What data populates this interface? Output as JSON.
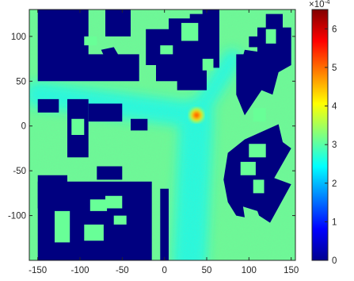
{
  "chart_data": {
    "type": "heatmap",
    "title": "",
    "xlabel": "",
    "ylabel": "",
    "x_range": [
      -160,
      155
    ],
    "y_range": [
      -150,
      130
    ],
    "x_ticks": [
      -150,
      -100,
      -50,
      0,
      50,
      100,
      150
    ],
    "y_ticks": [
      -100,
      -50,
      0,
      50,
      100
    ],
    "x_tick_labels": [
      "-150",
      "-100",
      "-50",
      "0",
      "50",
      "100",
      "150"
    ],
    "y_tick_labels": [
      "-100",
      "-50",
      "0",
      "50",
      "100"
    ],
    "colormap": "jet",
    "colorbar": {
      "range": [
        0,
        6.5
      ],
      "ticks": [
        0,
        1,
        2,
        3,
        4,
        5,
        6
      ],
      "tick_labels": [
        "0",
        "1",
        "2",
        "3",
        "4",
        "5",
        "6"
      ],
      "exponent_base": "×10",
      "exponent_power": "-4"
    },
    "background_level": 3.1,
    "corridor_level": 2.6,
    "source": {
      "x": 38,
      "y": 12,
      "peak": 5.2
    },
    "corridors": [
      {
        "from": [
          38,
          12
        ],
        "to": [
          -150,
          35
        ],
        "width": 30
      },
      {
        "from": [
          38,
          12
        ],
        "to": [
          30,
          -150
        ],
        "width": 40
      },
      {
        "from": [
          38,
          12
        ],
        "to": [
          80,
          75
        ],
        "width": 22
      }
    ],
    "obstacles": [
      [
        [
          -150,
          130
        ],
        [
          -150,
          50
        ],
        [
          -30,
          50
        ],
        [
          -30,
          80
        ],
        [
          -90,
          80
        ],
        [
          -90,
          130
        ]
      ],
      [
        [
          -70,
          130
        ],
        [
          -70,
          100
        ],
        [
          -40,
          100
        ],
        [
          -40,
          130
        ]
      ],
      [
        [
          -75,
          85
        ],
        [
          -70,
          75
        ],
        [
          -55,
          80
        ],
        [
          -60,
          88
        ]
      ],
      [
        [
          -22,
          108
        ],
        [
          -22,
          68
        ],
        [
          -10,
          68
        ],
        [
          -10,
          50
        ],
        [
          15,
          50
        ],
        [
          15,
          40
        ],
        [
          50,
          40
        ],
        [
          50,
          65
        ],
        [
          65,
          65
        ],
        [
          65,
          130
        ],
        [
          45,
          130
        ],
        [
          45,
          125
        ],
        [
          30,
          125
        ],
        [
          30,
          120
        ],
        [
          5,
          120
        ],
        [
          5,
          108
        ]
      ],
      [
        [
          90,
          68
        ],
        [
          110,
          72
        ],
        [
          115,
          65
        ],
        [
          118,
          82
        ],
        [
          95,
          85
        ]
      ],
      [
        [
          100,
          100
        ],
        [
          112,
          100
        ],
        [
          112,
          88
        ],
        [
          100,
          88
        ]
      ],
      [
        [
          95,
          12
        ],
        [
          115,
          40
        ],
        [
          128,
          35
        ],
        [
          135,
          60
        ],
        [
          150,
          68
        ],
        [
          150,
          110
        ],
        [
          140,
          110
        ],
        [
          140,
          125
        ],
        [
          120,
          125
        ],
        [
          120,
          110
        ],
        [
          110,
          110
        ],
        [
          110,
          80
        ],
        [
          85,
          80
        ],
        [
          85,
          35
        ]
      ],
      [
        [
          135,
          2
        ],
        [
          140,
          -18
        ],
        [
          150,
          -25
        ],
        [
          130,
          -58
        ],
        [
          150,
          -65
        ],
        [
          125,
          -108
        ],
        [
          112,
          -100
        ],
        [
          110,
          -95
        ],
        [
          93,
          -90
        ],
        [
          95,
          -102
        ],
        [
          85,
          -100
        ],
        [
          75,
          -85
        ],
        [
          70,
          -60
        ],
        [
          75,
          -30
        ],
        [
          95,
          -15
        ]
      ],
      [
        [
          -115,
          30
        ],
        [
          -115,
          -35
        ],
        [
          -90,
          -35
        ],
        [
          -90,
          30
        ]
      ],
      [
        [
          -150,
          30
        ],
        [
          -150,
          15
        ],
        [
          -125,
          15
        ],
        [
          -125,
          30
        ]
      ],
      [
        [
          -90,
          25
        ],
        [
          -50,
          25
        ],
        [
          -50,
          5
        ],
        [
          -90,
          5
        ]
      ],
      [
        [
          -40,
          8
        ],
        [
          -20,
          8
        ],
        [
          -20,
          -5
        ],
        [
          -40,
          -5
        ]
      ],
      [
        [
          -80,
          -45
        ],
        [
          -50,
          -45
        ],
        [
          -50,
          -60
        ],
        [
          -80,
          -60
        ]
      ],
      [
        [
          -150,
          -62
        ],
        [
          -40,
          -62
        ],
        [
          -40,
          -150
        ],
        [
          -150,
          -150
        ]
      ],
      [
        [
          -150,
          -92
        ],
        [
          -150,
          -55
        ],
        [
          -115,
          -55
        ],
        [
          -115,
          -75
        ],
        [
          -100,
          -70
        ],
        [
          -100,
          -92
        ]
      ],
      [
        [
          -40,
          -62
        ],
        [
          -15,
          -62
        ],
        [
          -15,
          -150
        ],
        [
          -40,
          -150
        ]
      ],
      [
        [
          -5,
          -70
        ],
        [
          5,
          -70
        ],
        [
          5,
          -150
        ],
        [
          -5,
          -150
        ]
      ]
    ],
    "obstacle_holes": [
      [
        [
          -130,
          -95
        ],
        [
          -112,
          -95
        ],
        [
          -112,
          -130
        ],
        [
          -130,
          -130
        ]
      ],
      [
        [
          -95,
          -110
        ],
        [
          -72,
          -110
        ],
        [
          -72,
          -128
        ],
        [
          -95,
          -128
        ]
      ],
      [
        [
          -88,
          -82
        ],
        [
          -68,
          -82
        ],
        [
          -68,
          -95
        ],
        [
          -88,
          -95
        ]
      ],
      [
        [
          -70,
          -78
        ],
        [
          -50,
          -78
        ],
        [
          -50,
          -92
        ],
        [
          -70,
          -92
        ]
      ],
      [
        [
          -60,
          -100
        ],
        [
          -45,
          -100
        ],
        [
          -45,
          -110
        ],
        [
          -60,
          -110
        ]
      ],
      [
        [
          -110,
          8
        ],
        [
          -95,
          8
        ],
        [
          -95,
          -10
        ],
        [
          -110,
          -10
        ]
      ],
      [
        [
          -95,
          100
        ],
        [
          -80,
          100
        ],
        [
          -80,
          90
        ],
        [
          -95,
          90
        ]
      ],
      [
        [
          -5,
          90
        ],
        [
          10,
          90
        ],
        [
          10,
          80
        ],
        [
          -5,
          80
        ]
      ],
      [
        [
          20,
          115
        ],
        [
          40,
          115
        ],
        [
          40,
          95
        ],
        [
          20,
          95
        ]
      ],
      [
        [
          45,
          75
        ],
        [
          58,
          75
        ],
        [
          58,
          62
        ],
        [
          45,
          62
        ]
      ],
      [
        [
          120,
          108
        ],
        [
          132,
          108
        ],
        [
          132,
          92
        ],
        [
          120,
          92
        ]
      ],
      [
        [
          105,
          20
        ],
        [
          120,
          20
        ],
        [
          120,
          5
        ],
        [
          105,
          5
        ]
      ],
      [
        [
          100,
          -20
        ],
        [
          120,
          -20
        ],
        [
          120,
          -35
        ],
        [
          100,
          -35
        ]
      ],
      [
        [
          90,
          -40
        ],
        [
          108,
          -40
        ],
        [
          108,
          -55
        ],
        [
          90,
          -55
        ]
      ],
      [
        [
          105,
          -60
        ],
        [
          118,
          -60
        ],
        [
          118,
          -75
        ],
        [
          105,
          -75
        ]
      ]
    ]
  }
}
